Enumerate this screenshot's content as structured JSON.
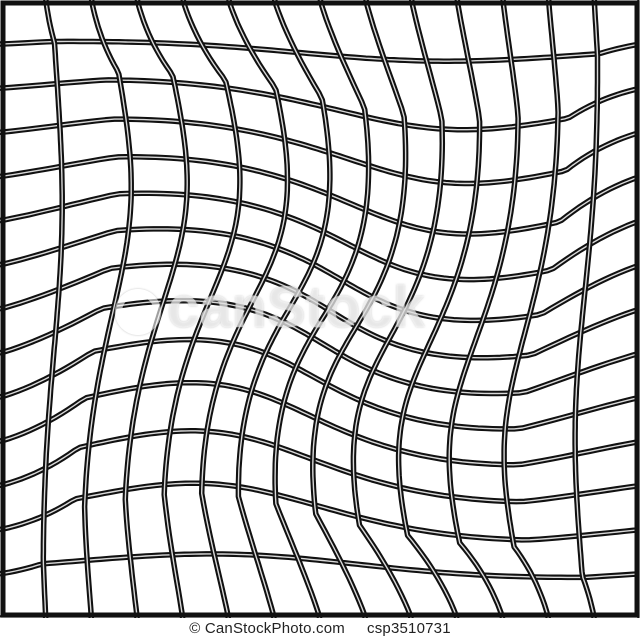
{
  "image": {
    "subject": "warped-grid",
    "line_color": "#111111",
    "highlight_color": "#d9d9d9",
    "background": "#ffffff"
  },
  "watermark": {
    "text": "canStock",
    "logo": "canstock-ring-logo-icon"
  },
  "footer": {
    "copyright": "© CanStockPhoto.com",
    "image_id": "csp3510731"
  }
}
